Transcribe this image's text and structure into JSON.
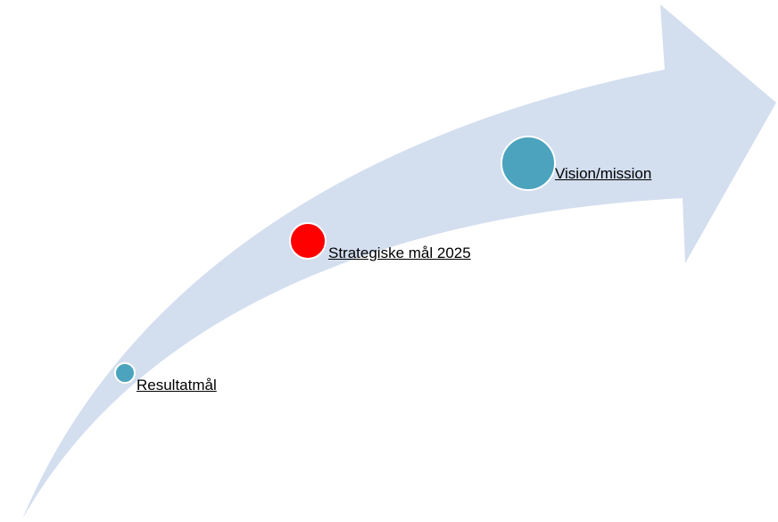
{
  "nodes": [
    {
      "label": "Resultatmål"
    },
    {
      "label": "Strategiske mål 2025"
    },
    {
      "label": "Vision/mission"
    }
  ]
}
